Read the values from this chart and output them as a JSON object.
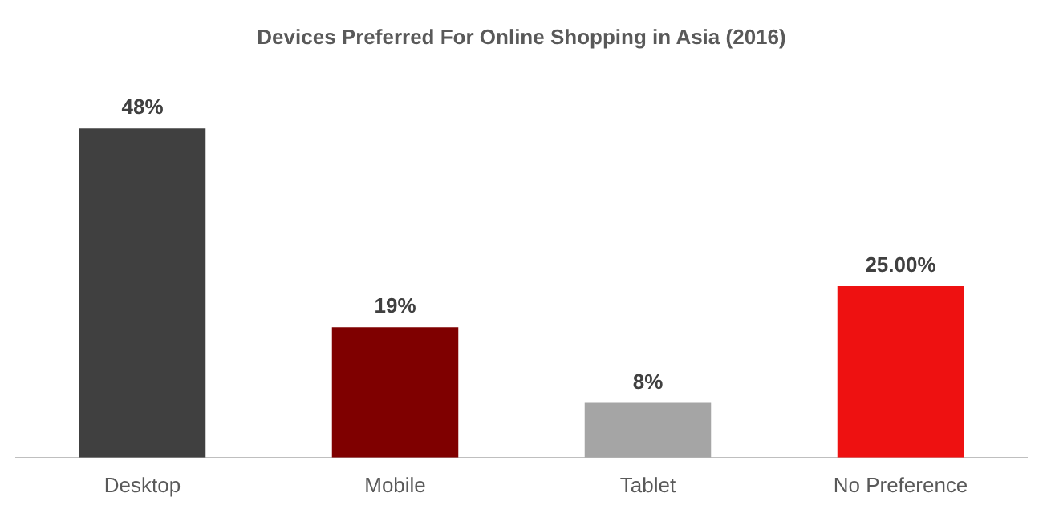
{
  "chart_data": {
    "type": "bar",
    "title": "Devices Preferred For Online Shopping in Asia (2016)",
    "categories": [
      "Desktop",
      "Mobile",
      "Tablet",
      "No Preference"
    ],
    "values": [
      48,
      19,
      8,
      25
    ],
    "colors": [
      "#404040",
      "#7f0000",
      "#a5a5a5",
      "#ee1111"
    ],
    "value_labels": [
      "48%",
      "19%",
      "8%",
      "25.00%"
    ],
    "tick_labels": "x",
    "grid": false,
    "legend": false
  }
}
